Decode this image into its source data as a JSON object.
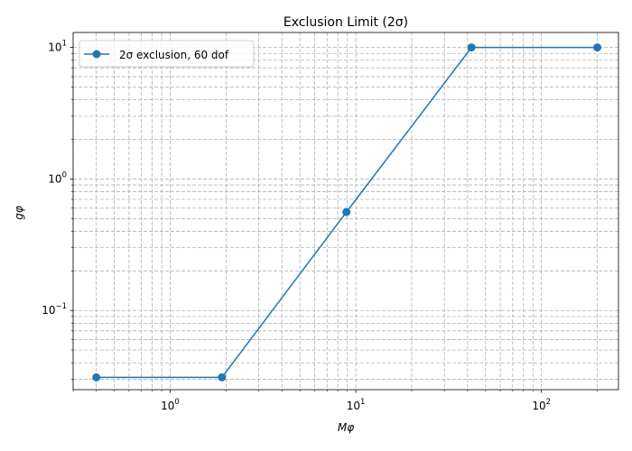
{
  "chart_data": {
    "type": "line",
    "title": "Exclusion Limit (2σ)",
    "xlabel": "Mφ",
    "ylabel": "gφ",
    "xscale": "log",
    "yscale": "log",
    "xlim": [
      0.3,
      260
    ],
    "ylim": [
      0.025,
      13
    ],
    "grid": true,
    "grid_style": "dashed",
    "legend_position": "top-left",
    "x_tick_labels": [
      {
        "value": 1,
        "base": "10",
        "exp": "0"
      },
      {
        "value": 10,
        "base": "10",
        "exp": "1"
      },
      {
        "value": 100,
        "base": "10",
        "exp": "2"
      }
    ],
    "y_tick_labels": [
      {
        "value": 0.1,
        "base": "10",
        "exp": "−1"
      },
      {
        "value": 1,
        "base": "10",
        "exp": "0"
      },
      {
        "value": 10,
        "base": "10",
        "exp": "1"
      }
    ],
    "series": [
      {
        "name": "2σ exclusion, 60 dof",
        "color": "#1f77b4",
        "marker": "circle",
        "x": [
          0.4,
          1.9,
          8.9,
          42,
          200
        ],
        "y": [
          0.031,
          0.031,
          0.56,
          10,
          10
        ]
      }
    ]
  }
}
